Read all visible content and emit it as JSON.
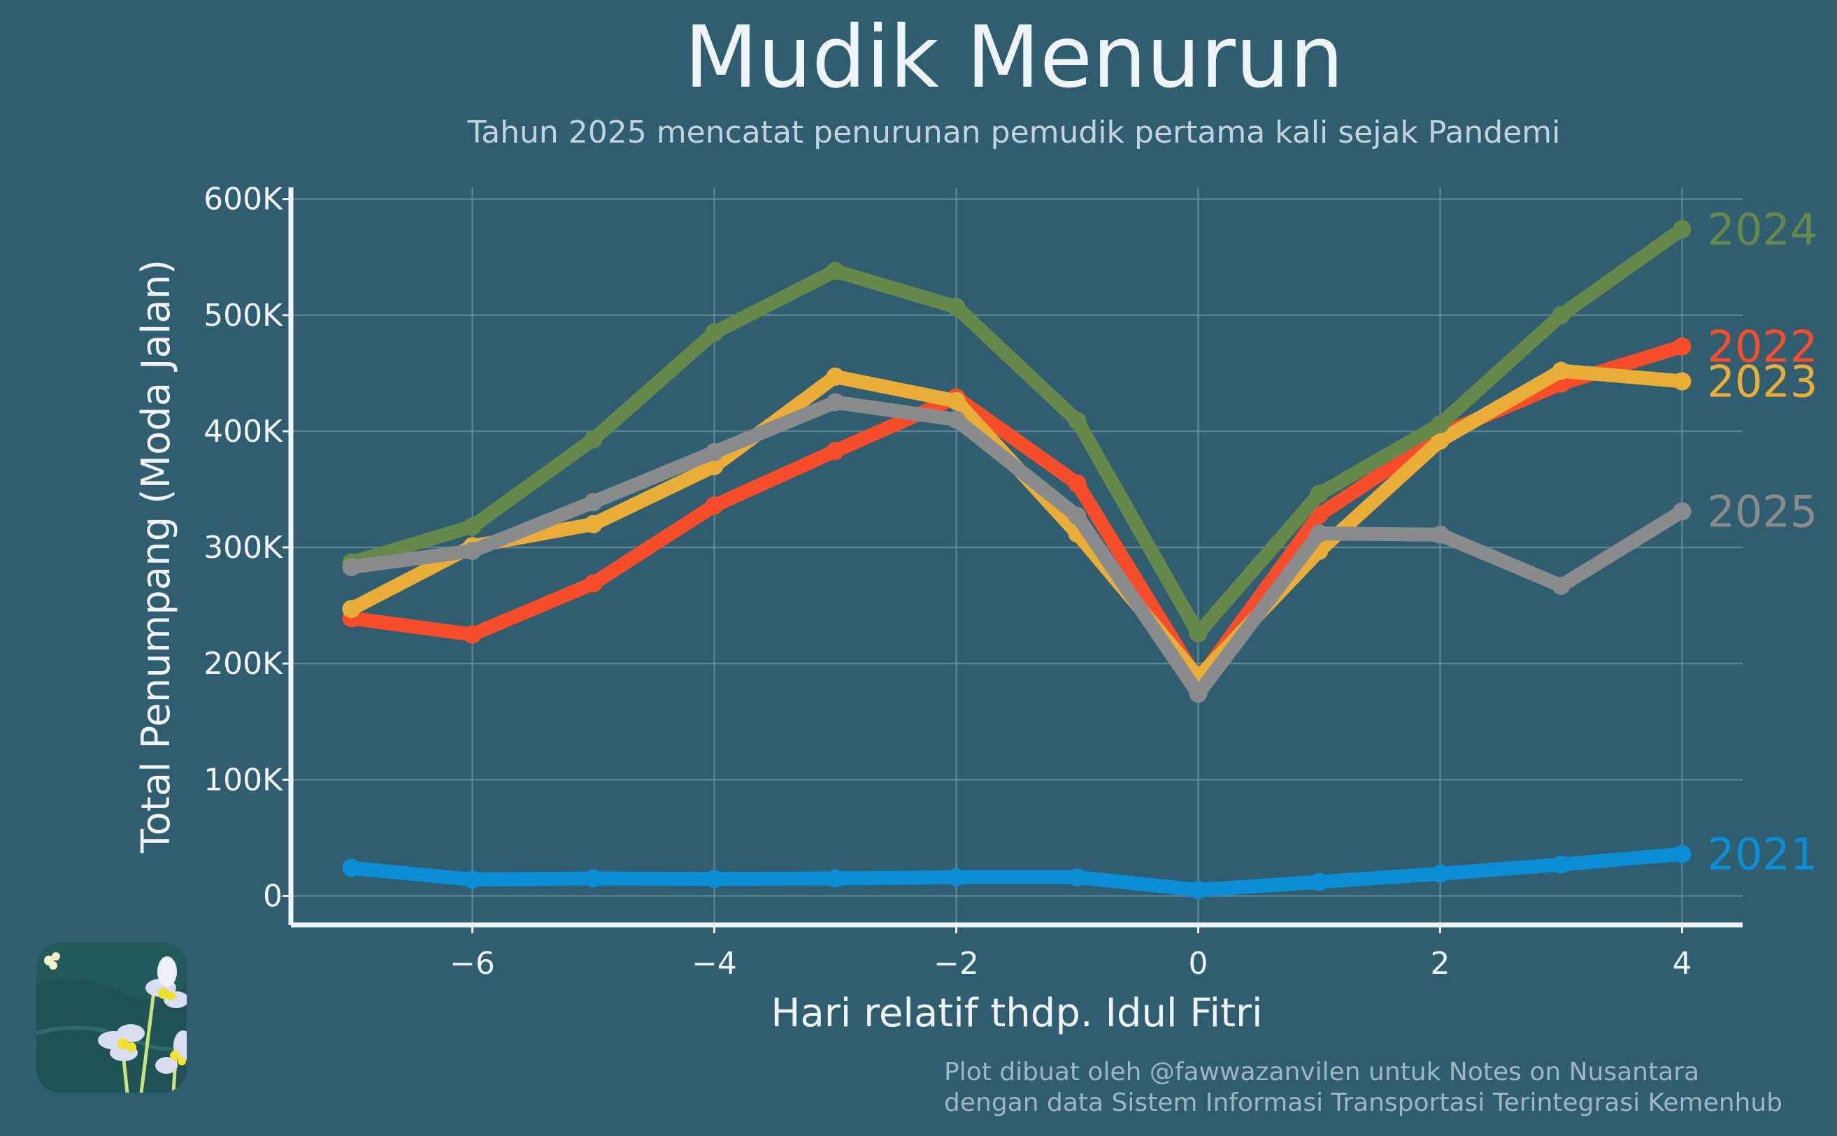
{
  "title": "Mudik Menurun",
  "subtitle": "Tahun 2025 mencatat penurunan pemudik pertama kali sejak Pandemi",
  "credit": {
    "line1": "Plot dibuat oleh @fawwazanvilen untuk Notes on Nusantara",
    "line2": "dengan data Sistem Informasi Transportasi Terintegrasi Kemenhub"
  },
  "colors": {
    "background": "#305d70",
    "axis": "#eef4f8",
    "grid": "#6f8f9d",
    "text": "#eef4f8"
  },
  "chart_data": {
    "type": "line",
    "title": "Mudik Menurun",
    "subtitle": "Tahun 2025 mencatat penurunan pemudik pertama kali sejak Pandemi",
    "xlabel": "Hari relatif thdp. Idul Fitri",
    "ylabel": "Total Penumpang (Moda Jalan)",
    "x": [
      -7,
      -6,
      -5,
      -4,
      -3,
      -2,
      -1,
      0,
      1,
      2,
      3,
      4
    ],
    "xlim": [
      -7.5,
      4.5
    ],
    "ylim": [
      -25000,
      610000
    ],
    "xticks": [
      -6,
      -4,
      -2,
      0,
      2,
      4
    ],
    "xtick_labels": [
      "−6",
      "−4",
      "−2",
      "0",
      "2",
      "4"
    ],
    "yticks": [
      0,
      100000,
      200000,
      300000,
      400000,
      500000,
      600000
    ],
    "ytick_labels": [
      "0",
      "100K",
      "200K",
      "300K",
      "400K",
      "500K",
      "600K"
    ],
    "grid": true,
    "legend": "end-of-line labels",
    "series": [
      {
        "name": "2021",
        "color": "#0b8ed6",
        "values": [
          24000,
          14000,
          15000,
          14500,
          15000,
          16000,
          16000,
          5000,
          12000,
          19000,
          27000,
          36000
        ]
      },
      {
        "name": "2022",
        "color": "#f84d2b",
        "values": [
          239000,
          225000,
          269000,
          336000,
          383000,
          429000,
          355000,
          185000,
          328000,
          397000,
          441000,
          473000
        ]
      },
      {
        "name": "2023",
        "color": "#eaae38",
        "values": [
          247000,
          301000,
          320000,
          370000,
          447000,
          426000,
          312000,
          188000,
          297000,
          392000,
          452000,
          443000
        ]
      },
      {
        "name": "2024",
        "color": "#66884a",
        "values": [
          287000,
          318000,
          393000,
          485000,
          538000,
          507000,
          409000,
          226000,
          346000,
          406000,
          500000,
          574000
        ]
      },
      {
        "name": "2025",
        "color": "#8a8b8c",
        "values": [
          283000,
          297000,
          339000,
          382000,
          425000,
          410000,
          327000,
          174000,
          312000,
          311000,
          267000,
          331000
        ]
      }
    ]
  }
}
